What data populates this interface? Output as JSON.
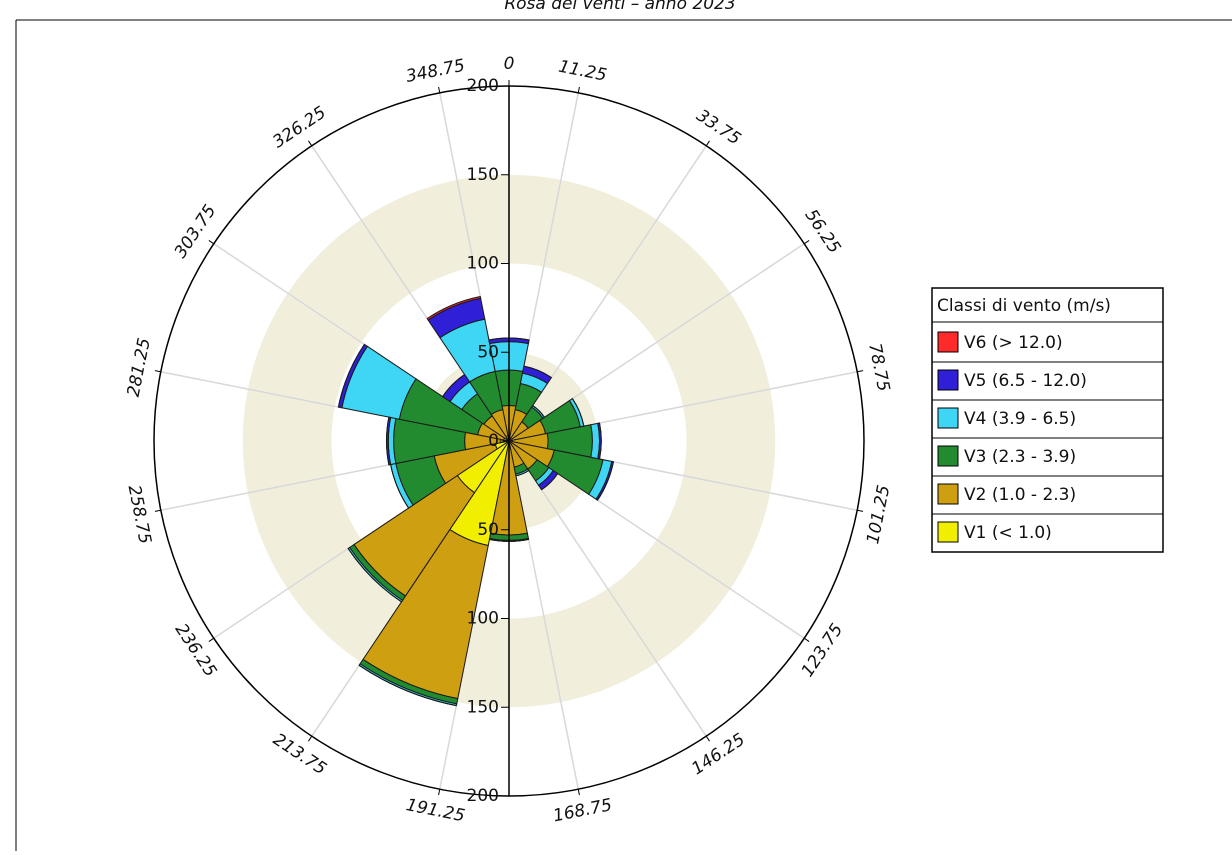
{
  "chart_data": {
    "type": "windrose",
    "title": "Rosa dei venti – anno 2023",
    "x": [
      0,
      22.5,
      45,
      67.5,
      90,
      112.5,
      135,
      157.5,
      180,
      202.5,
      225,
      247.5,
      270,
      292.5,
      315,
      337.5
    ],
    "xlim": [
      0,
      360
    ],
    "xticks": [
      0,
      11.25,
      33.75,
      56.25,
      78.75,
      101.25,
      123.75,
      146.25,
      168.75,
      191.25,
      213.75,
      236.25,
      258.75,
      281.25,
      303.75,
      326.25,
      348.75
    ],
    "ylim": [
      0,
      200
    ],
    "yticks": [
      0,
      50,
      100,
      150,
      200
    ],
    "grid": true,
    "legend_title": "Classi di vento (m/s)",
    "legend_position": "right",
    "series": [
      {
        "name": "V6 (> 12.0)",
        "color": "#ff2a2a",
        "values": [
          0,
          0,
          0,
          0,
          0,
          0,
          0,
          0,
          0,
          0,
          0,
          0,
          0,
          0,
          0,
          1
        ]
      },
      {
        "name": "V5 (6.5 - 12.0)",
        "color": "#2f1fd6",
        "values": [
          2,
          4,
          0,
          0,
          1,
          1,
          3,
          0,
          0,
          0,
          0,
          0,
          1,
          2,
          5,
          12
        ]
      },
      {
        "name": "V4 (3.9 - 6.5)",
        "color": "#3fd6f5",
        "values": [
          16,
          6,
          1,
          2,
          4,
          5,
          3,
          1,
          0.5,
          1,
          1,
          3,
          3,
          33,
          8,
          30
        ]
      },
      {
        "name": "V3 (2.3 - 3.9)",
        "color": "#238b2f",
        "values": [
          20,
          15,
          10,
          20,
          25,
          28,
          8,
          4,
          3,
          3,
          3,
          22,
          40,
          45,
          15,
          22
        ]
      },
      {
        "name": "V2 (1.0 - 2.3)",
        "color": "#cf9f12",
        "values": [
          17,
          16,
          12,
          20,
          20,
          25,
          18,
          14,
          50,
          88,
          70,
          35,
          20,
          15,
          15,
          15
        ]
      },
      {
        "name": "V1 (< 1.0)",
        "color": "#f2ee00",
        "values": [
          3,
          2,
          1,
          1,
          2,
          1,
          1,
          1,
          3,
          60,
          35,
          8,
          5,
          3,
          2,
          3
        ]
      }
    ]
  }
}
